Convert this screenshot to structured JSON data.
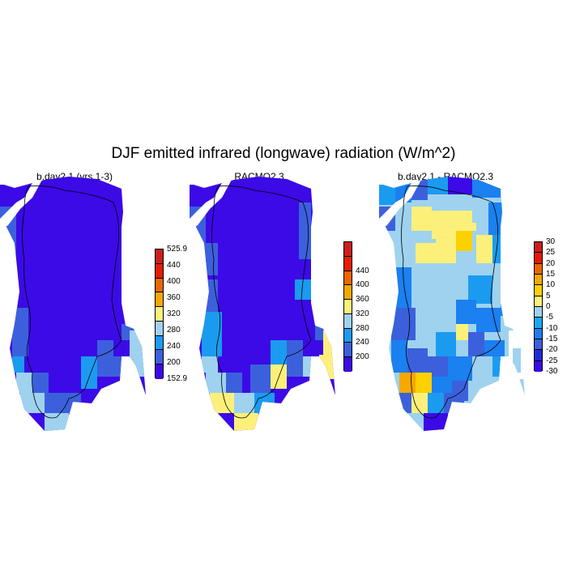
{
  "title": "DJF emitted infrared (longwave) radiation (W/m^2)",
  "panels": [
    {
      "id": "model",
      "title": "b.day2.1 (yrs 1-3)",
      "colorbar": {
        "colors": [
          "#3b0ae6",
          "#3c60dc",
          "#1b9bf0",
          "#9ed2ef",
          "#fdf07a",
          "#f5a800",
          "#ec6600",
          "#e61b00",
          "#cc1e1e"
        ],
        "labels": [
          "152.9",
          "200",
          "240",
          "280",
          "320",
          "360",
          "400",
          "440",
          "525.9"
        ]
      }
    },
    {
      "id": "obs",
      "title": "RACMO2.3",
      "colorbar": {
        "colors": [
          "#3b0ae6",
          "#3c60dc",
          "#1b9bf0",
          "#9ed2ef",
          "#fdf07a",
          "#f5a800",
          "#ec6600",
          "#e61b00",
          "#cc1e1e"
        ],
        "labels": [
          "200",
          "240",
          "280",
          "320",
          "360",
          "400",
          "440"
        ]
      }
    },
    {
      "id": "diff",
      "title": "b.day2.1 - RACMO2.3",
      "colorbar": {
        "colors": [
          "#3b0ae6",
          "#1f2bd6",
          "#3c60dc",
          "#1b80f0",
          "#1ba8f5",
          "#9ed2ef",
          "#fdf07a",
          "#fdd000",
          "#f5a800",
          "#ec6600",
          "#e61b00",
          "#cc1e1e"
        ],
        "labels": [
          "-30",
          "-25",
          "-20",
          "-15",
          "-10",
          "-5",
          "0",
          "5",
          "10",
          "15",
          "20",
          "25",
          "30"
        ]
      }
    }
  ]
}
